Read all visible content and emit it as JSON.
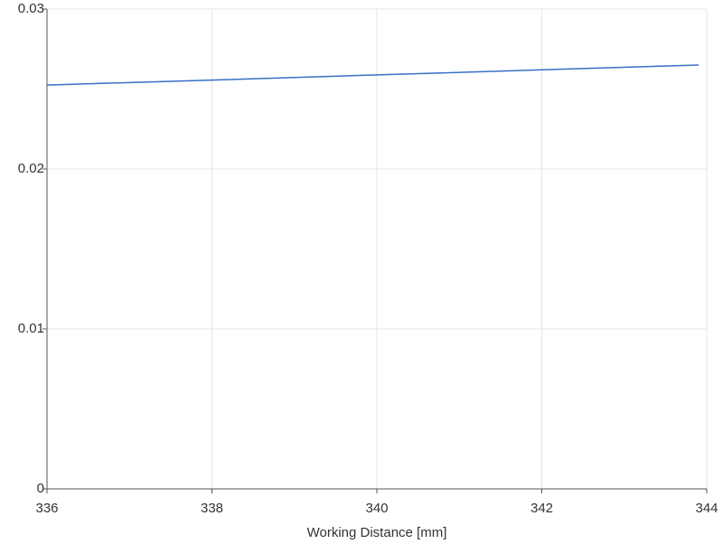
{
  "chart_data": {
    "type": "line",
    "x_label": "Working Distance [mm]",
    "x": [
      336,
      338,
      340,
      342,
      343.9
    ],
    "series": [
      {
        "color": "#3a6fc4",
        "values": [
          0.02525,
          0.02556,
          0.02588,
          0.0262,
          0.0265
        ]
      }
    ],
    "xlim": [
      336,
      344
    ],
    "xticks": [
      336,
      338,
      340,
      342,
      344
    ],
    "ylim": [
      0,
      0.03
    ],
    "yticks": [
      0,
      0.01,
      0.02,
      0.03
    ],
    "grid": true
  }
}
